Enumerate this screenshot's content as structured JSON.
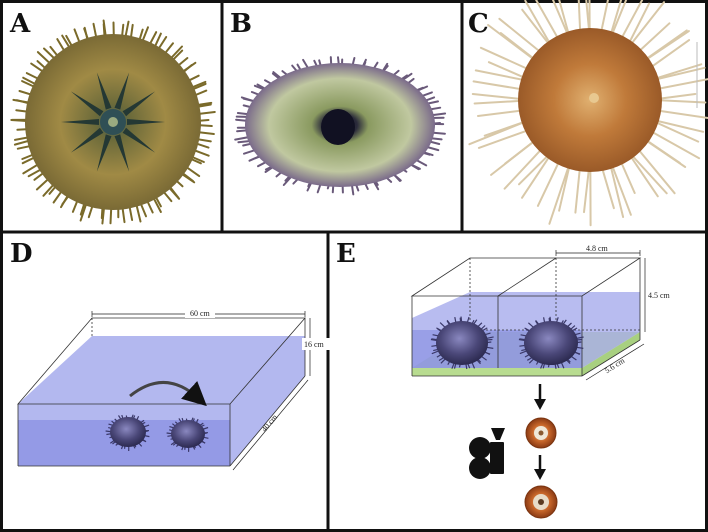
{
  "panels": {
    "a": {
      "letter": "A"
    },
    "b": {
      "letter": "B"
    },
    "c": {
      "letter": "C"
    },
    "d": {
      "letter": "D",
      "length_label": "60 cm",
      "height_label": "16 cm",
      "width_label": "40 cm"
    },
    "e": {
      "letter": "E",
      "length_label": "4.8 cm",
      "height_label": "4.5 cm",
      "width_label": "5.6 cm"
    }
  },
  "colors": {
    "water": "#8f93e8",
    "water_deep": "#7a80dc",
    "urchin_purple": "#4a4778",
    "urchin_green": "#8a7a3a",
    "urchin_brown": "#b8743a",
    "mat_green": "#c8e6a0",
    "cup_orange": "#c8672a"
  }
}
